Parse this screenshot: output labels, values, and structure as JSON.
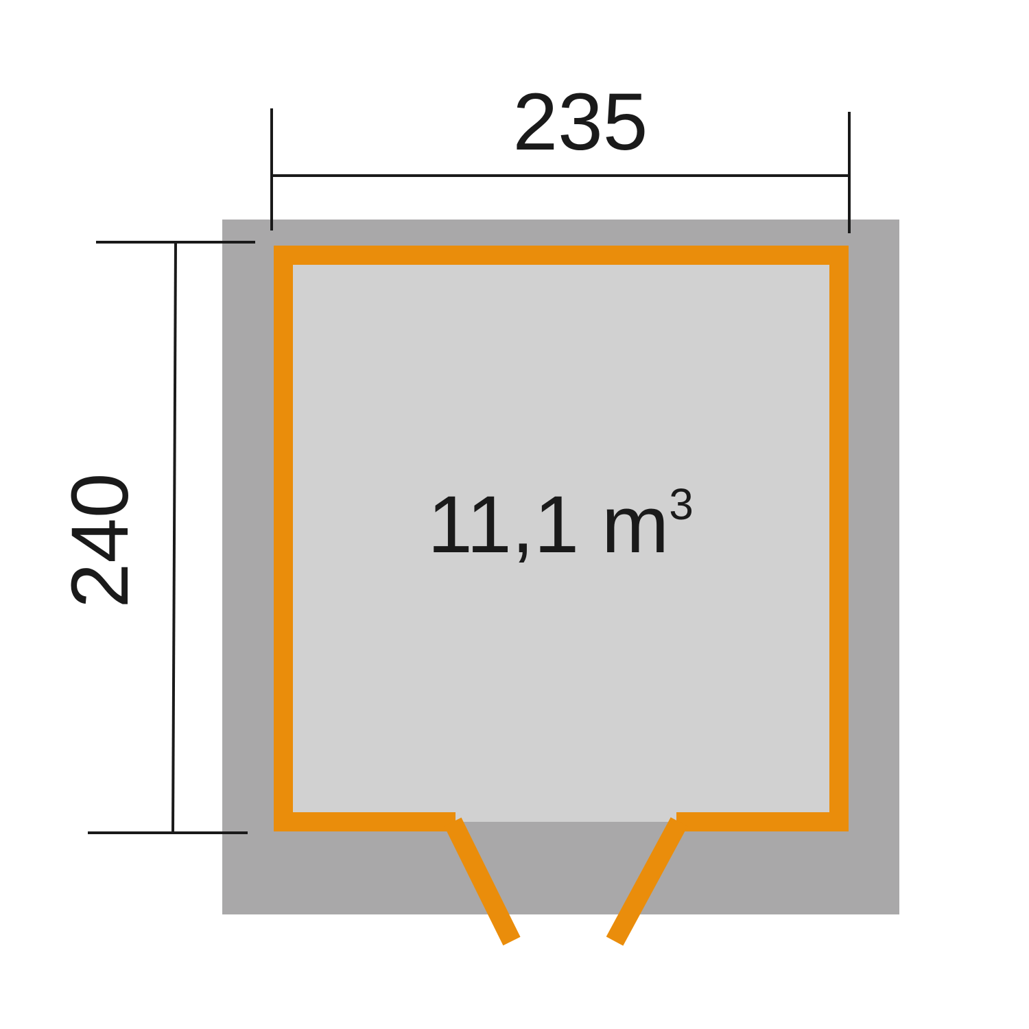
{
  "dimensions": {
    "width_label": "235",
    "depth_label": "240"
  },
  "interior": {
    "volume_value": "11,1 m",
    "volume_exponent": "3"
  },
  "colors": {
    "background": "#ffffff",
    "roof_overhang": "#a9a8a9",
    "floor": "#d1d1d1",
    "wall": "#ea8d0b",
    "dimension_line": "#1a1a1a",
    "text": "#1a1a1a"
  }
}
